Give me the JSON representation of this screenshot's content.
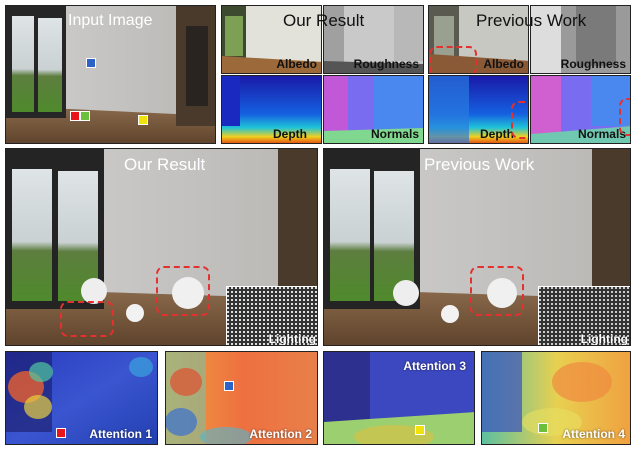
{
  "top": {
    "input_title": "Input Image",
    "our_title": "Our Result",
    "prev_title": "Previous Work",
    "labels": {
      "albedo": "Albedo",
      "roughness": "Roughness",
      "depth": "Depth",
      "normals": "Normals"
    }
  },
  "middle": {
    "our_title": "Our Result",
    "prev_title": "Previous Work",
    "lighting": "Lighting"
  },
  "bottom": {
    "attention": [
      "Attention 1",
      "Attention 2",
      "Attention 3",
      "Attention 4"
    ]
  },
  "colors": {
    "marker_blue": "#2b63c8",
    "marker_red": "#e8161a",
    "marker_green": "#6cbf3a",
    "marker_yellow": "#f2e20c",
    "dash_red": "#e53030"
  }
}
